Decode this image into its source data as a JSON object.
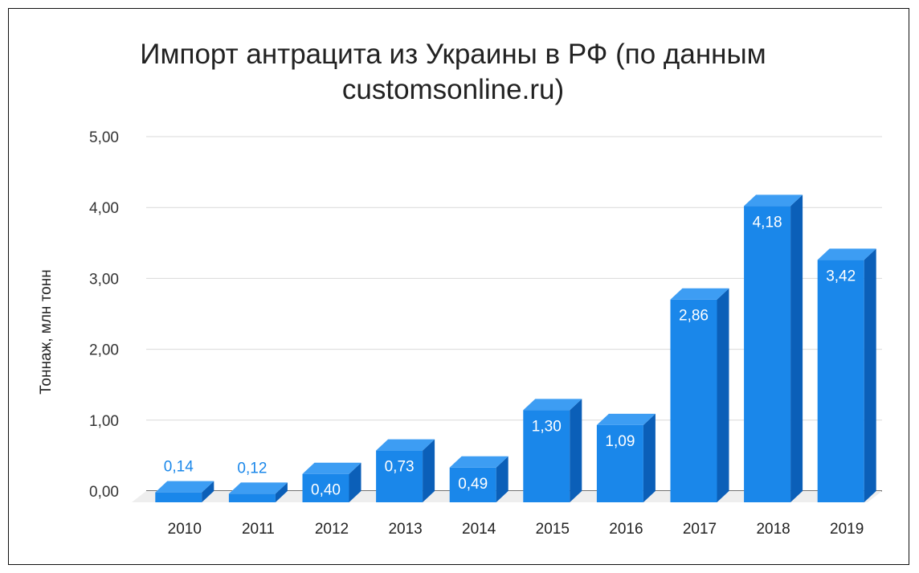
{
  "chart_data": {
    "type": "bar",
    "title_lines": [
      "Импорт антрацита из Украины в РФ (по данным",
      "customsonline.ru)"
    ],
    "xlabel": "",
    "ylabel": "Тоннаж, млн тонн",
    "ylim": [
      0,
      5
    ],
    "y_ticks": [
      0,
      1,
      2,
      3,
      4,
      5
    ],
    "y_tick_labels": [
      "0,00",
      "1,00",
      "2,00",
      "3,00",
      "4,00",
      "5,00"
    ],
    "categories": [
      "2010",
      "2011",
      "2012",
      "2013",
      "2014",
      "2015",
      "2016",
      "2017",
      "2018",
      "2019"
    ],
    "values": [
      0.14,
      0.12,
      0.4,
      0.73,
      0.49,
      1.3,
      1.09,
      2.86,
      4.18,
      3.42
    ],
    "value_labels": [
      "0,14",
      "0,12",
      "0,40",
      "0,73",
      "0,49",
      "1,30",
      "1,09",
      "2,86",
      "4,18",
      "3,42"
    ],
    "grid": true,
    "style": "3d-bars",
    "colors": {
      "bar_front": "#1a87ea",
      "bar_top": "#3d9df3",
      "bar_side": "#0b5fb8",
      "label_outside": "#1a87ea",
      "label_inside": "#ffffff",
      "grid": "#d9d9d9",
      "baseline": "#444444"
    }
  }
}
